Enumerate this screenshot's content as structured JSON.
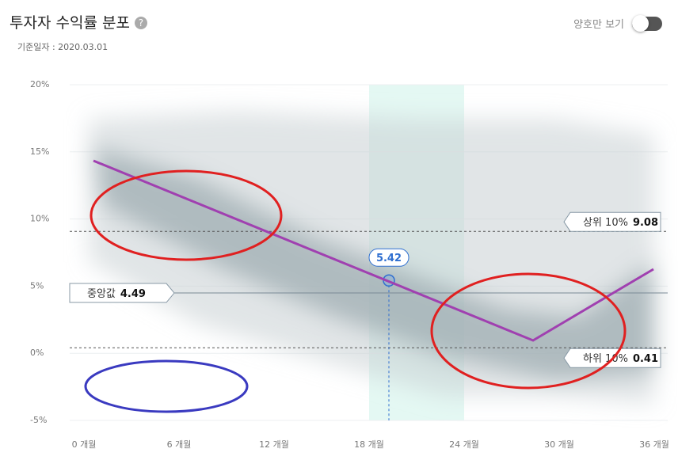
{
  "header": {
    "title": "투자자 수익률 분포",
    "help": "?",
    "date_label": "기준일자 : 2020.03.01"
  },
  "controls": {
    "toggle_label": "양호만 보기"
  },
  "chart_data": {
    "type": "scatter",
    "xlim": [
      -0.9,
      36.85
    ],
    "xticks": [
      {
        "value": 0,
        "label": "0 개월"
      },
      {
        "value": 6,
        "label": "6 개월"
      },
      {
        "value": 12,
        "label": "12 개월"
      },
      {
        "value": 18,
        "label": "18 개월"
      },
      {
        "value": 24,
        "label": "24 개월"
      },
      {
        "value": 30,
        "label": "30 개월"
      },
      {
        "value": 36,
        "label": "36 개월"
      }
    ],
    "ylim": [
      -5,
      20
    ],
    "yticks": [
      {
        "value": -5,
        "label": "-5%"
      },
      {
        "value": 0,
        "label": "0%"
      },
      {
        "value": 5,
        "label": "5%"
      },
      {
        "value": 10,
        "label": "10%"
      },
      {
        "value": 15,
        "label": "15%"
      },
      {
        "value": 20,
        "label": "20%"
      }
    ],
    "grid": true,
    "highlight_band": [
      18,
      24
    ],
    "reference_lines": [
      {
        "name": "중앙값",
        "value": 4.49,
        "style": "solid",
        "label_side": "left"
      },
      {
        "name": "상위 10%",
        "value": 9.08,
        "style": "dashed",
        "label_side": "right"
      },
      {
        "name": "하위 10%",
        "value": 0.41,
        "style": "dashed",
        "label_side": "right"
      }
    ],
    "selected_point": {
      "x": 19.25,
      "y": 5.42
    }
  }
}
